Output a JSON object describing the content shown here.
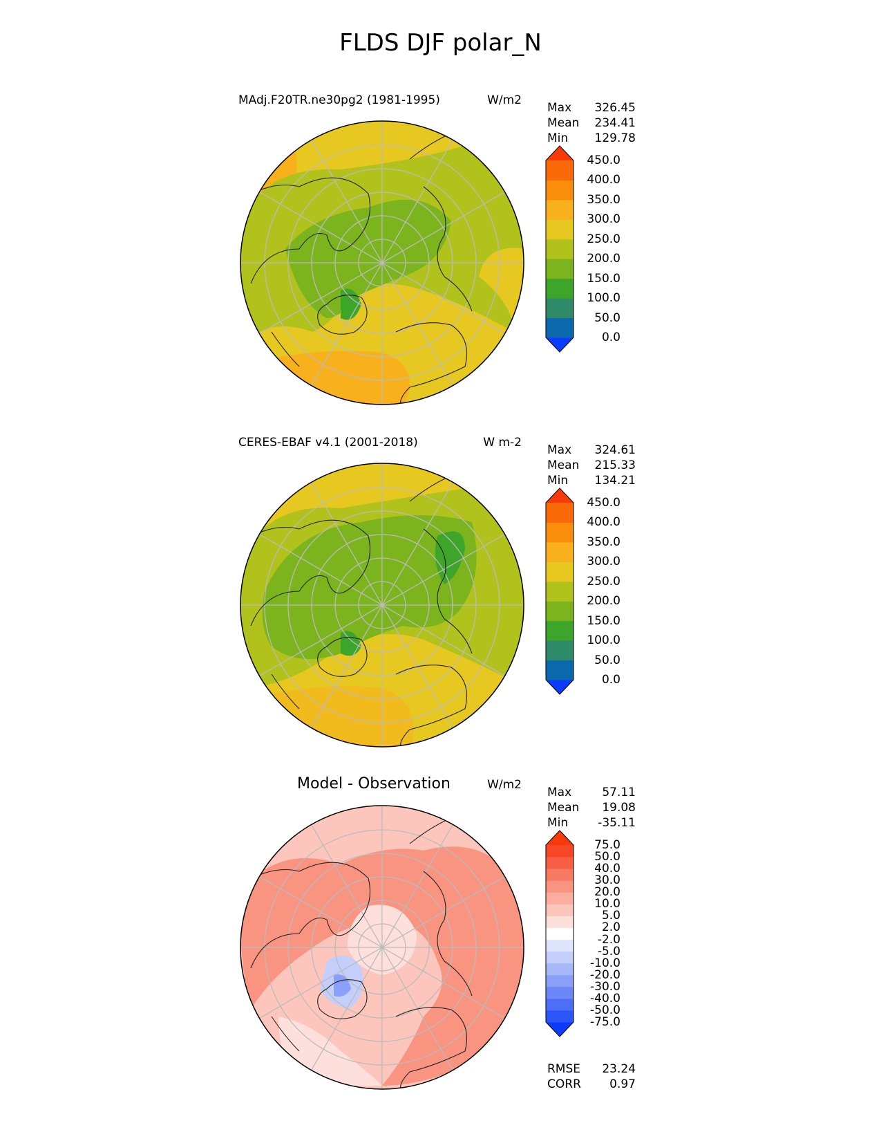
{
  "title": "FLDS DJF polar_N",
  "panels": [
    {
      "id": "model",
      "title": "MAdj.F20TR.ne30pg2 (1981-1995)",
      "units": "W/m2",
      "stats": {
        "max_label": "Max",
        "max": "326.45",
        "mean_label": "Mean",
        "mean": "234.41",
        "min_label": "Min",
        "min": "129.78"
      },
      "colorbar": {
        "levels": [
          "0.0",
          "50.0",
          "100.0",
          "150.0",
          "200.0",
          "250.0",
          "300.0",
          "350.0",
          "400.0",
          "450.0"
        ],
        "colors": [
          "#0b3bfb",
          "#0b68ad",
          "#2f8a6a",
          "#3da52a",
          "#7bb41c",
          "#b2c21c",
          "#e6c820",
          "#f8b11c",
          "#fa8d0c",
          "#fb6a08",
          "#f83a0b"
        ]
      }
    },
    {
      "id": "obs",
      "title": "CERES-EBAF v4.1 (2001-2018)",
      "units": "W m-2",
      "stats": {
        "max_label": "Max",
        "max": "324.61",
        "mean_label": "Mean",
        "mean": "215.33",
        "min_label": "Min",
        "min": "134.21"
      },
      "colorbar": {
        "levels": [
          "0.0",
          "50.0",
          "100.0",
          "150.0",
          "200.0",
          "250.0",
          "300.0",
          "350.0",
          "400.0",
          "450.0"
        ],
        "colors": [
          "#0b3bfb",
          "#0b68ad",
          "#2f8a6a",
          "#3da52a",
          "#7bb41c",
          "#b2c21c",
          "#e6c820",
          "#f8b11c",
          "#fa8d0c",
          "#fb6a08",
          "#f83a0b"
        ]
      }
    },
    {
      "id": "diff",
      "title": "Model - Observation",
      "units": "W/m2",
      "stats": {
        "max_label": "Max",
        "max": "57.11",
        "mean_label": "Mean",
        "mean": "19.08",
        "min_label": "Min",
        "min": "-35.11"
      },
      "colorbar": {
        "levels": [
          "-75.0",
          "-50.0",
          "-40.0",
          "-30.0",
          "-20.0",
          "-10.0",
          "-5.0",
          "-2.0",
          "2.0",
          "5.0",
          "10.0",
          "20.0",
          "30.0",
          "40.0",
          "50.0",
          "75.0"
        ],
        "colors": [
          "#0b3bfb",
          "#2c56fa",
          "#4d6ff8",
          "#6c88f8",
          "#8aa0f8",
          "#a7b8f9",
          "#c3cffa",
          "#dfe5fc",
          "#ffffff",
          "#fde0dc",
          "#fcc6bd",
          "#fbad9f",
          "#f99481",
          "#f87a63",
          "#f76045",
          "#f74727",
          "#f83a0b"
        ]
      },
      "rmse_label": "RMSE",
      "rmse": "23.24",
      "corr_label": "CORR",
      "corr": "0.97"
    }
  ]
}
